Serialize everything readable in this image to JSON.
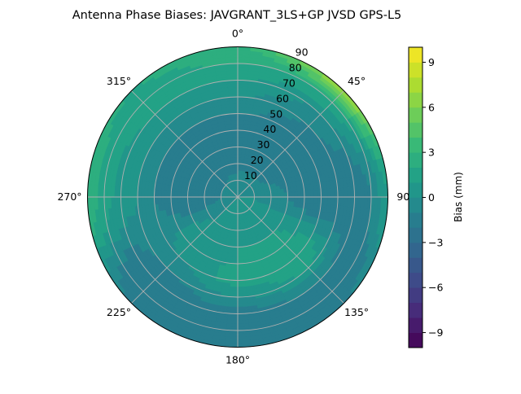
{
  "chart_data": {
    "type": "heatmap",
    "subtype": "polar-contour",
    "title": "Antenna Phase Biases: JAVGRANT_3LS+GP JVSD GPS-L5",
    "colormap": "viridis",
    "colorbar": {
      "label": "Bias (mm)",
      "range": [
        -10,
        10
      ],
      "level_step": 1,
      "ticks": [
        "−9",
        "−6",
        "−3",
        "0",
        "3",
        "6",
        "9"
      ],
      "tick_values": [
        -9,
        -6,
        -3,
        0,
        3,
        6,
        9
      ]
    },
    "angular_axis": {
      "zero_location": "north",
      "direction": "clockwise",
      "tick_labels": [
        "0°",
        "45°",
        "90°",
        "135°",
        "180°",
        "225°",
        "270°",
        "315°"
      ],
      "tick_values": [
        0,
        45,
        90,
        135,
        180,
        225,
        270,
        315
      ]
    },
    "radial_axis": {
      "range": [
        0,
        90
      ],
      "tick_labels": [
        "10",
        "20",
        "30",
        "40",
        "50",
        "60",
        "70",
        "80",
        "90"
      ],
      "tick_values": [
        10,
        20,
        30,
        40,
        50,
        60,
        70,
        80,
        90
      ]
    },
    "grid": true,
    "azimuth_deg": [
      0,
      45,
      90,
      135,
      180,
      225,
      270,
      315
    ],
    "zenith_deg": [
      0,
      10,
      20,
      30,
      40,
      50,
      60,
      70,
      80,
      90
    ],
    "values_mm": [
      [
        0,
        -0.5,
        -1.5,
        -2,
        -2,
        -1,
        0,
        1,
        2,
        3
      ],
      [
        0,
        -0.5,
        -1.5,
        -2,
        -2,
        -1.5,
        -1,
        0,
        2,
        7
      ],
      [
        0,
        0,
        -0.5,
        -1,
        -1.5,
        -2,
        -2,
        -2,
        -1,
        1
      ],
      [
        0,
        0.5,
        1,
        1,
        1.5,
        2,
        1,
        -1,
        -2,
        -1
      ],
      [
        0,
        0.5,
        0.5,
        1,
        1,
        1.5,
        0,
        -1.5,
        -2,
        -1
      ],
      [
        0,
        0,
        0,
        0.5,
        0.5,
        0,
        -1,
        -2,
        -2,
        -1
      ],
      [
        0,
        -1,
        -1.5,
        -2,
        -1.5,
        -1,
        0,
        0.5,
        1.5,
        3
      ],
      [
        0,
        -1,
        -1.5,
        -2,
        -1.5,
        -1,
        0,
        1,
        1.5,
        2
      ]
    ]
  }
}
